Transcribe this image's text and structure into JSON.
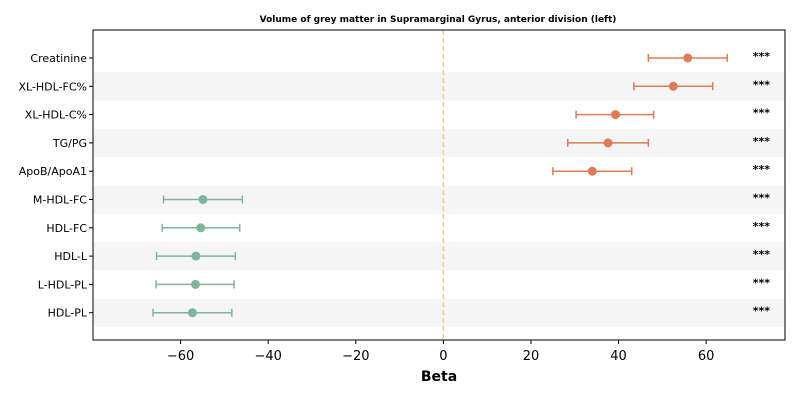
{
  "chart_data": {
    "type": "forest",
    "title": "Volume of grey matter in Supramarginal Gyrus, anterior division (left)",
    "xlabel": "Beta",
    "ylabel": "",
    "xlim": [
      -80,
      78
    ],
    "xticks": [
      -60,
      -40,
      -20,
      0,
      20,
      40,
      60
    ],
    "xtick_labels": [
      "−60",
      "−40",
      "−20",
      "0",
      "20",
      "40",
      "60"
    ],
    "reference_line": 0,
    "grid": false,
    "alternating_row_bands": true,
    "colors": {
      "positive": "#E07B5A",
      "negative": "#7FB59A",
      "reference": "#F5C98A",
      "band": "#F5F5F5"
    },
    "rows": [
      {
        "label": "Creatinine",
        "beta": 55.8,
        "lower": 46.8,
        "upper": 64.8,
        "significance": "***"
      },
      {
        "label": "XL-HDL-FC%",
        "beta": 52.5,
        "lower": 43.5,
        "upper": 61.5,
        "significance": "***"
      },
      {
        "label": "XL-HDL-C%",
        "beta": 39.3,
        "lower": 30.3,
        "upper": 48.0,
        "significance": "***"
      },
      {
        "label": "TG/PG",
        "beta": 37.6,
        "lower": 28.4,
        "upper": 46.8,
        "significance": "***"
      },
      {
        "label": "ApoB/ApoA1",
        "beta": 34.0,
        "lower": 25.0,
        "upper": 43.0,
        "significance": "***"
      },
      {
        "label": "M-HDL-FC",
        "beta": -54.9,
        "lower": -63.9,
        "upper": -45.9,
        "significance": "***"
      },
      {
        "label": "HDL-FC",
        "beta": -55.4,
        "lower": -64.2,
        "upper": -46.5,
        "significance": "***"
      },
      {
        "label": "HDL-L",
        "beta": -56.5,
        "lower": -65.5,
        "upper": -47.5,
        "significance": "***"
      },
      {
        "label": "L-HDL-PL",
        "beta": -56.6,
        "lower": -65.6,
        "upper": -47.8,
        "significance": "***"
      },
      {
        "label": "HDL-PL",
        "beta": -57.3,
        "lower": -66.3,
        "upper": -48.3,
        "significance": "***"
      }
    ]
  }
}
